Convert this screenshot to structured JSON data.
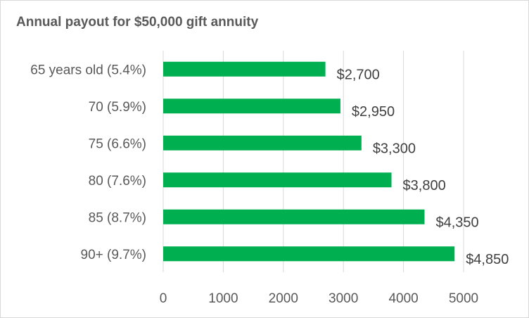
{
  "chart_data": {
    "type": "bar",
    "orientation": "horizontal",
    "title": "Annual payout for $50,000 gift annuity",
    "categories": [
      "65 years old (5.4%)",
      "70 (5.9%)",
      "75 (6.6%)",
      "80 (7.6%)",
      "85 (8.7%)",
      "90+ (9.7%)"
    ],
    "values": [
      2700,
      2950,
      3300,
      3800,
      4350,
      4850
    ],
    "data_labels": [
      "$2,700",
      "$2,950",
      "$3,300",
      "$3,800",
      "$4,350",
      "$4,850"
    ],
    "xlim": [
      0,
      5000
    ],
    "xticks": [
      0,
      1000,
      2000,
      3000,
      4000,
      5000
    ],
    "xtick_labels": [
      "0",
      "1000",
      "2000",
      "3000",
      "4000",
      "5000"
    ],
    "xlabel": "",
    "ylabel": "",
    "grid": "vertical",
    "legend": "none",
    "colors": {
      "bar": "#00b050",
      "grid": "#d9d9d9",
      "text": "#595959"
    }
  }
}
